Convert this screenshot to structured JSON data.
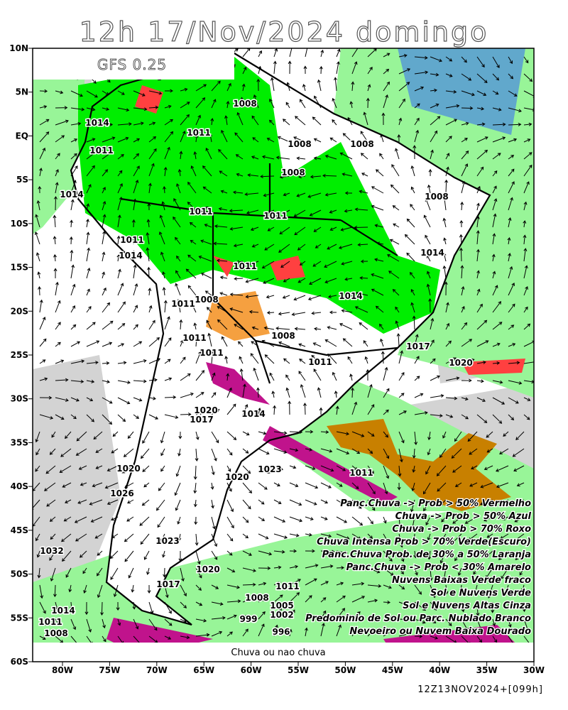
{
  "header": {
    "title": "12h 17/Nov/2024 domingo",
    "model": "GFS 0.25",
    "run": "12Z13NOV2024+[099h]"
  },
  "map": {
    "lat_labels": [
      "10N",
      "5N",
      "EQ",
      "5S",
      "10S",
      "15S",
      "20S",
      "25S",
      "30S",
      "35S",
      "40S",
      "45S",
      "50S",
      "55S",
      "60S"
    ],
    "lon_labels": [
      "80W",
      "75W",
      "70W",
      "65W",
      "60W",
      "55W",
      "50W",
      "45W",
      "40W",
      "35W",
      "30W"
    ],
    "pressure_labels": [
      "1014",
      "1011",
      "1014",
      "1011",
      "1014",
      "1011",
      "1011",
      "1011",
      "1008",
      "1011",
      "1008",
      "1008",
      "1008",
      "1008",
      "1014",
      "1014",
      "1008",
      "1011",
      "1011",
      "1011",
      "1008",
      "1011",
      "1017",
      "1020",
      "1020",
      "1017",
      "1014",
      "1020",
      "1023",
      "1020",
      "1011",
      "1026",
      "1023",
      "1032",
      "1020",
      "1017",
      "1011",
      "1008",
      "1005",
      "1002",
      "1014",
      "1011",
      "1008",
      "996",
      "999"
    ],
    "legend": [
      "Panc.Chuva -> Prob > 50% Vermelho",
      "Chuva -> Prob > 50% Azul",
      "Chuva -> Prob > 70% Roxo",
      "Chuva Intensa Prob > 70% Verde(Escuro)",
      "Panc.Chuva Prob. de 30% a 50% Laranja",
      "Panc.Chuva -> Prob < 30% Amarelo",
      "Nuvens Baixas Verde fraco",
      "Sol e Nuvens Verde",
      "Sol e Nuvens Altas Cinza",
      "Predominio de Sol ou Parc. Nublado Branco",
      "Nevoeiro ou Nuvem Baixa Dourado"
    ],
    "bottom_note": "Chuva ou nao chuva"
  }
}
